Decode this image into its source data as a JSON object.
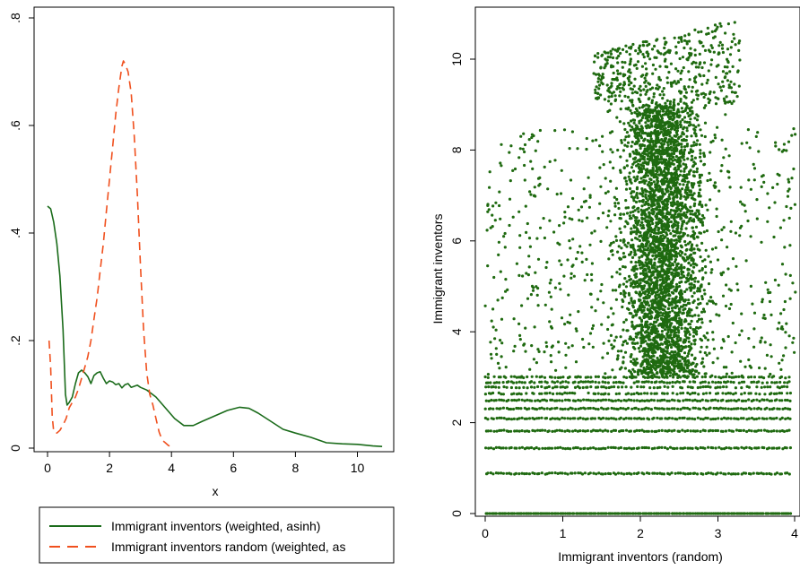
{
  "colors": {
    "green": "#1a6b1a",
    "orange": "#f0501e",
    "scatter": "#1f6a10"
  },
  "chart_data": [
    {
      "type": "line",
      "xlabel": "x",
      "ylabel": "",
      "xlim": [
        0,
        11
      ],
      "ylim": [
        0,
        0.8
      ],
      "x_ticks": [
        0,
        2,
        4,
        6,
        8,
        10
      ],
      "x_tick_labels": [
        "0",
        "2",
        "4",
        "6",
        "8",
        "10"
      ],
      "y_ticks": [
        0,
        0.2,
        0.4,
        0.6,
        0.8
      ],
      "y_tick_labels": [
        "0",
        ".2",
        ".4",
        ".6",
        ".8"
      ],
      "legend_position": "bottom",
      "series": [
        {
          "name": "Immigrant inventors (weighted, asinh)",
          "style": "solid",
          "points": [
            [
              0.0,
              0.45
            ],
            [
              0.1,
              0.445
            ],
            [
              0.2,
              0.42
            ],
            [
              0.3,
              0.38
            ],
            [
              0.4,
              0.32
            ],
            [
              0.5,
              0.22
            ],
            [
              0.58,
              0.1
            ],
            [
              0.63,
              0.08
            ],
            [
              0.7,
              0.085
            ],
            [
              0.8,
              0.095
            ],
            [
              0.9,
              0.12
            ],
            [
              1.0,
              0.14
            ],
            [
              1.1,
              0.145
            ],
            [
              1.2,
              0.14
            ],
            [
              1.3,
              0.133
            ],
            [
              1.4,
              0.12
            ],
            [
              1.5,
              0.135
            ],
            [
              1.6,
              0.14
            ],
            [
              1.7,
              0.142
            ],
            [
              1.8,
              0.13
            ],
            [
              1.9,
              0.12
            ],
            [
              2.0,
              0.125
            ],
            [
              2.1,
              0.123
            ],
            [
              2.2,
              0.118
            ],
            [
              2.3,
              0.12
            ],
            [
              2.4,
              0.112
            ],
            [
              2.5,
              0.118
            ],
            [
              2.6,
              0.12
            ],
            [
              2.7,
              0.113
            ],
            [
              2.8,
              0.115
            ],
            [
              2.9,
              0.117
            ],
            [
              3.0,
              0.113
            ],
            [
              3.2,
              0.108
            ],
            [
              3.5,
              0.095
            ],
            [
              3.8,
              0.075
            ],
            [
              4.1,
              0.055
            ],
            [
              4.4,
              0.042
            ],
            [
              4.7,
              0.042
            ],
            [
              5.0,
              0.05
            ],
            [
              5.4,
              0.06
            ],
            [
              5.8,
              0.07
            ],
            [
              6.2,
              0.076
            ],
            [
              6.5,
              0.074
            ],
            [
              6.8,
              0.065
            ],
            [
              7.2,
              0.05
            ],
            [
              7.6,
              0.035
            ],
            [
              8.0,
              0.028
            ],
            [
              8.5,
              0.02
            ],
            [
              9.0,
              0.01
            ],
            [
              9.5,
              0.008
            ],
            [
              10.0,
              0.007
            ],
            [
              10.5,
              0.004
            ],
            [
              10.8,
              0.003
            ]
          ]
        },
        {
          "name": "Immigrant inventors random (weighted, as",
          "style": "dashed",
          "points": [
            [
              0.05,
              0.2
            ],
            [
              0.1,
              0.15
            ],
            [
              0.15,
              0.06
            ],
            [
              0.2,
              0.03
            ],
            [
              0.3,
              0.028
            ],
            [
              0.4,
              0.033
            ],
            [
              0.5,
              0.043
            ],
            [
              0.6,
              0.055
            ],
            [
              0.7,
              0.075
            ],
            [
              0.8,
              0.085
            ],
            [
              0.9,
              0.095
            ],
            [
              1.0,
              0.11
            ],
            [
              1.1,
              0.13
            ],
            [
              1.2,
              0.15
            ],
            [
              1.3,
              0.17
            ],
            [
              1.4,
              0.2
            ],
            [
              1.5,
              0.24
            ],
            [
              1.6,
              0.28
            ],
            [
              1.7,
              0.33
            ],
            [
              1.8,
              0.38
            ],
            [
              1.9,
              0.44
            ],
            [
              2.0,
              0.5
            ],
            [
              2.1,
              0.56
            ],
            [
              2.2,
              0.62
            ],
            [
              2.3,
              0.67
            ],
            [
              2.4,
              0.71
            ],
            [
              2.45,
              0.72
            ],
            [
              2.5,
              0.715
            ],
            [
              2.6,
              0.7
            ],
            [
              2.7,
              0.66
            ],
            [
              2.8,
              0.58
            ],
            [
              2.9,
              0.47
            ],
            [
              3.0,
              0.34
            ],
            [
              3.1,
              0.22
            ],
            [
              3.2,
              0.14
            ],
            [
              3.3,
              0.1
            ],
            [
              3.4,
              0.08
            ],
            [
              3.5,
              0.055
            ],
            [
              3.6,
              0.03
            ],
            [
              3.7,
              0.015
            ],
            [
              3.8,
              0.01
            ],
            [
              3.9,
              0.005
            ],
            [
              4.0,
              0.002
            ]
          ]
        }
      ]
    },
    {
      "type": "scatter",
      "xlabel": "Immigrant inventors (random)",
      "ylabel": "Immigrant inventors",
      "xlim": [
        0,
        4
      ],
      "ylim": [
        0,
        11
      ],
      "x_ticks": [
        0,
        1,
        2,
        3,
        4
      ],
      "x_tick_labels": [
        "0",
        "1",
        "2",
        "3",
        "4"
      ],
      "y_ticks": [
        0,
        2,
        4,
        6,
        8,
        10
      ],
      "y_tick_labels": [
        "0",
        "2",
        "4",
        "6",
        "8",
        "10"
      ],
      "y_bands": [
        0.0,
        0.88,
        1.44,
        1.82,
        2.09,
        2.31,
        2.49,
        2.64,
        2.78,
        2.89,
        3.0
      ],
      "dense_region": {
        "x_center": 2.3,
        "x_spread": 0.75,
        "y_range": [
          3.0,
          9.0
        ]
      },
      "upper_cluster": {
        "x_range": [
          1.4,
          3.3
        ],
        "y_range": [
          9.0,
          10.9
        ]
      }
    }
  ]
}
